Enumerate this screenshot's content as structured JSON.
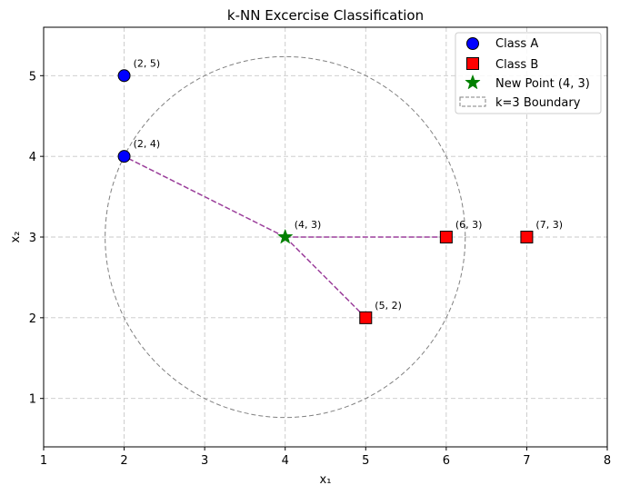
{
  "chart_data": {
    "type": "scatter",
    "title": "k-NN Excercise Classification",
    "xlabel": "x₁",
    "ylabel": "x₂",
    "xlim": [
      1,
      8
    ],
    "ylim": [
      0.4,
      5.6
    ],
    "xticks": [
      1,
      2,
      3,
      4,
      5,
      6,
      7,
      8
    ],
    "yticks": [
      1,
      2,
      3,
      4,
      5
    ],
    "grid": true,
    "legend_position": "top-right",
    "series": [
      {
        "name": "Class A",
        "marker": "circle",
        "color": "#0000ff",
        "points": [
          {
            "x": 2,
            "y": 5,
            "label": "(2, 5)"
          },
          {
            "x": 2,
            "y": 4,
            "label": "(2, 4)"
          }
        ]
      },
      {
        "name": "Class B",
        "marker": "square",
        "color": "#ff0000",
        "points": [
          {
            "x": 6,
            "y": 3,
            "label": "(6, 3)"
          },
          {
            "x": 7,
            "y": 3,
            "label": "(7, 3)"
          },
          {
            "x": 5,
            "y": 2,
            "label": "(5, 2)"
          }
        ]
      },
      {
        "name": "New Point (4, 3)",
        "marker": "star",
        "color": "#008000",
        "points": [
          {
            "x": 4,
            "y": 3,
            "label": "(4, 3)"
          }
        ]
      }
    ],
    "neighbor_lines": {
      "color": "#9b3f9b",
      "from": {
        "x": 4,
        "y": 3
      },
      "to": [
        {
          "x": 2,
          "y": 4
        },
        {
          "x": 6,
          "y": 3
        },
        {
          "x": 5,
          "y": 2
        }
      ]
    },
    "boundary": {
      "name": "k=3 Boundary",
      "center": {
        "x": 4,
        "y": 3
      },
      "radius": 2.236,
      "color": "#808080"
    }
  }
}
